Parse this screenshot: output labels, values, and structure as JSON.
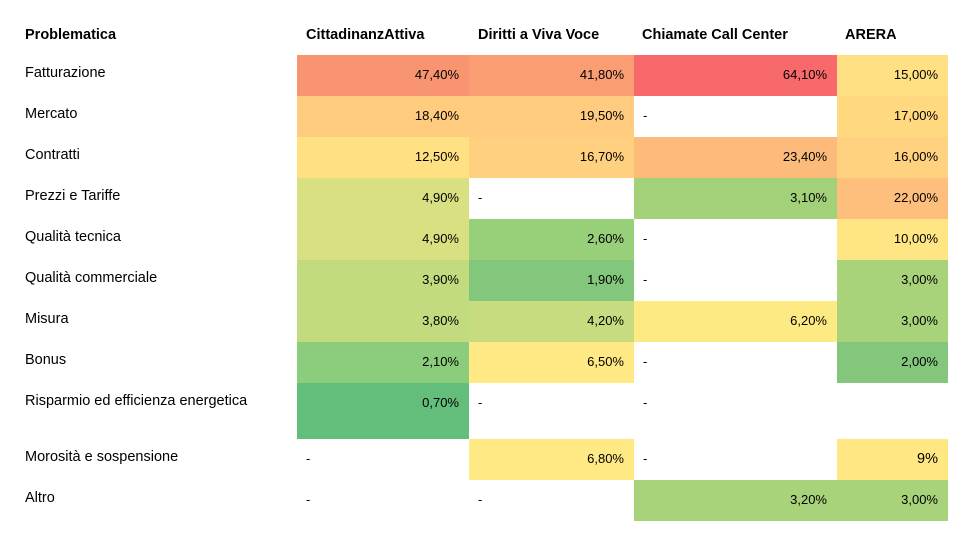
{
  "chart_data": {
    "type": "heatmap",
    "header_label": "Problematica",
    "columns": [
      "CittadinanzAttiva",
      "Diritti a Viva Voce",
      "Chiamate Call Center",
      "ARERA"
    ],
    "rows": [
      {
        "label": "Fatturazione",
        "values": [
          "47,40%",
          "41,80%",
          "64,10%",
          "15,00%"
        ],
        "colors": [
          "#f8946f",
          "#fb9d73",
          "#f8696b",
          "#ffe083"
        ]
      },
      {
        "label": "Mercato",
        "values": [
          "18,40%",
          "19,50%",
          "-",
          "17,00%"
        ],
        "colors": [
          "#ffcb7e",
          "#ffcb7e",
          null,
          "#ffd880"
        ]
      },
      {
        "label": "Contratti",
        "values": [
          "12,50%",
          "16,70%",
          "23,40%",
          "16,00%"
        ],
        "colors": [
          "#ffe083",
          "#ffd07f",
          "#fcbb7a",
          "#ffd27f"
        ]
      },
      {
        "label": "Prezzi e Tariffe",
        "values": [
          "4,90%",
          "-",
          "3,10%",
          "22,00%"
        ],
        "colors": [
          "#d8e081",
          null,
          "#a2d17a",
          "#fdbf7b"
        ]
      },
      {
        "label": "Qualità tecnica",
        "values": [
          "4,90%",
          "2,60%",
          "-",
          "10,00%"
        ],
        "colors": [
          "#d8e081",
          "#98cf79",
          null,
          "#ffe584"
        ]
      },
      {
        "label": "Qualità commerciale",
        "values": [
          "3,90%",
          "1,90%",
          "-",
          "3,00%"
        ],
        "colors": [
          "#c3db7f",
          "#82c77c",
          null,
          "#a8d37b"
        ]
      },
      {
        "label": "Misura",
        "values": [
          "3,80%",
          "4,20%",
          "6,20%",
          "3,00%"
        ],
        "colors": [
          "#c3db7f",
          "#c7dc80",
          "#feea83",
          "#a8d37b"
        ]
      },
      {
        "label": "Bonus",
        "values": [
          "2,10%",
          "6,50%",
          "-",
          "2,00%"
        ],
        "colors": [
          "#8ccc7d",
          "#ffe985",
          null,
          "#84c77c"
        ]
      },
      {
        "label": "Risparmio ed efficienza energetica",
        "values": [
          "0,70%",
          "-",
          "-",
          ""
        ],
        "colors": [
          "#63be7b",
          null,
          null,
          null
        ]
      },
      {
        "label": "Morosità e sospensione",
        "values": [
          "-",
          "6,80%",
          "-",
          "9%"
        ],
        "colors": [
          null,
          "#ffe985",
          null,
          "#ffe784"
        ]
      },
      {
        "label": "Altro",
        "values": [
          "-",
          "-",
          "3,20%",
          "3,00%"
        ],
        "colors": [
          null,
          null,
          "#a8d37b",
          "#a8d37b"
        ]
      }
    ]
  }
}
